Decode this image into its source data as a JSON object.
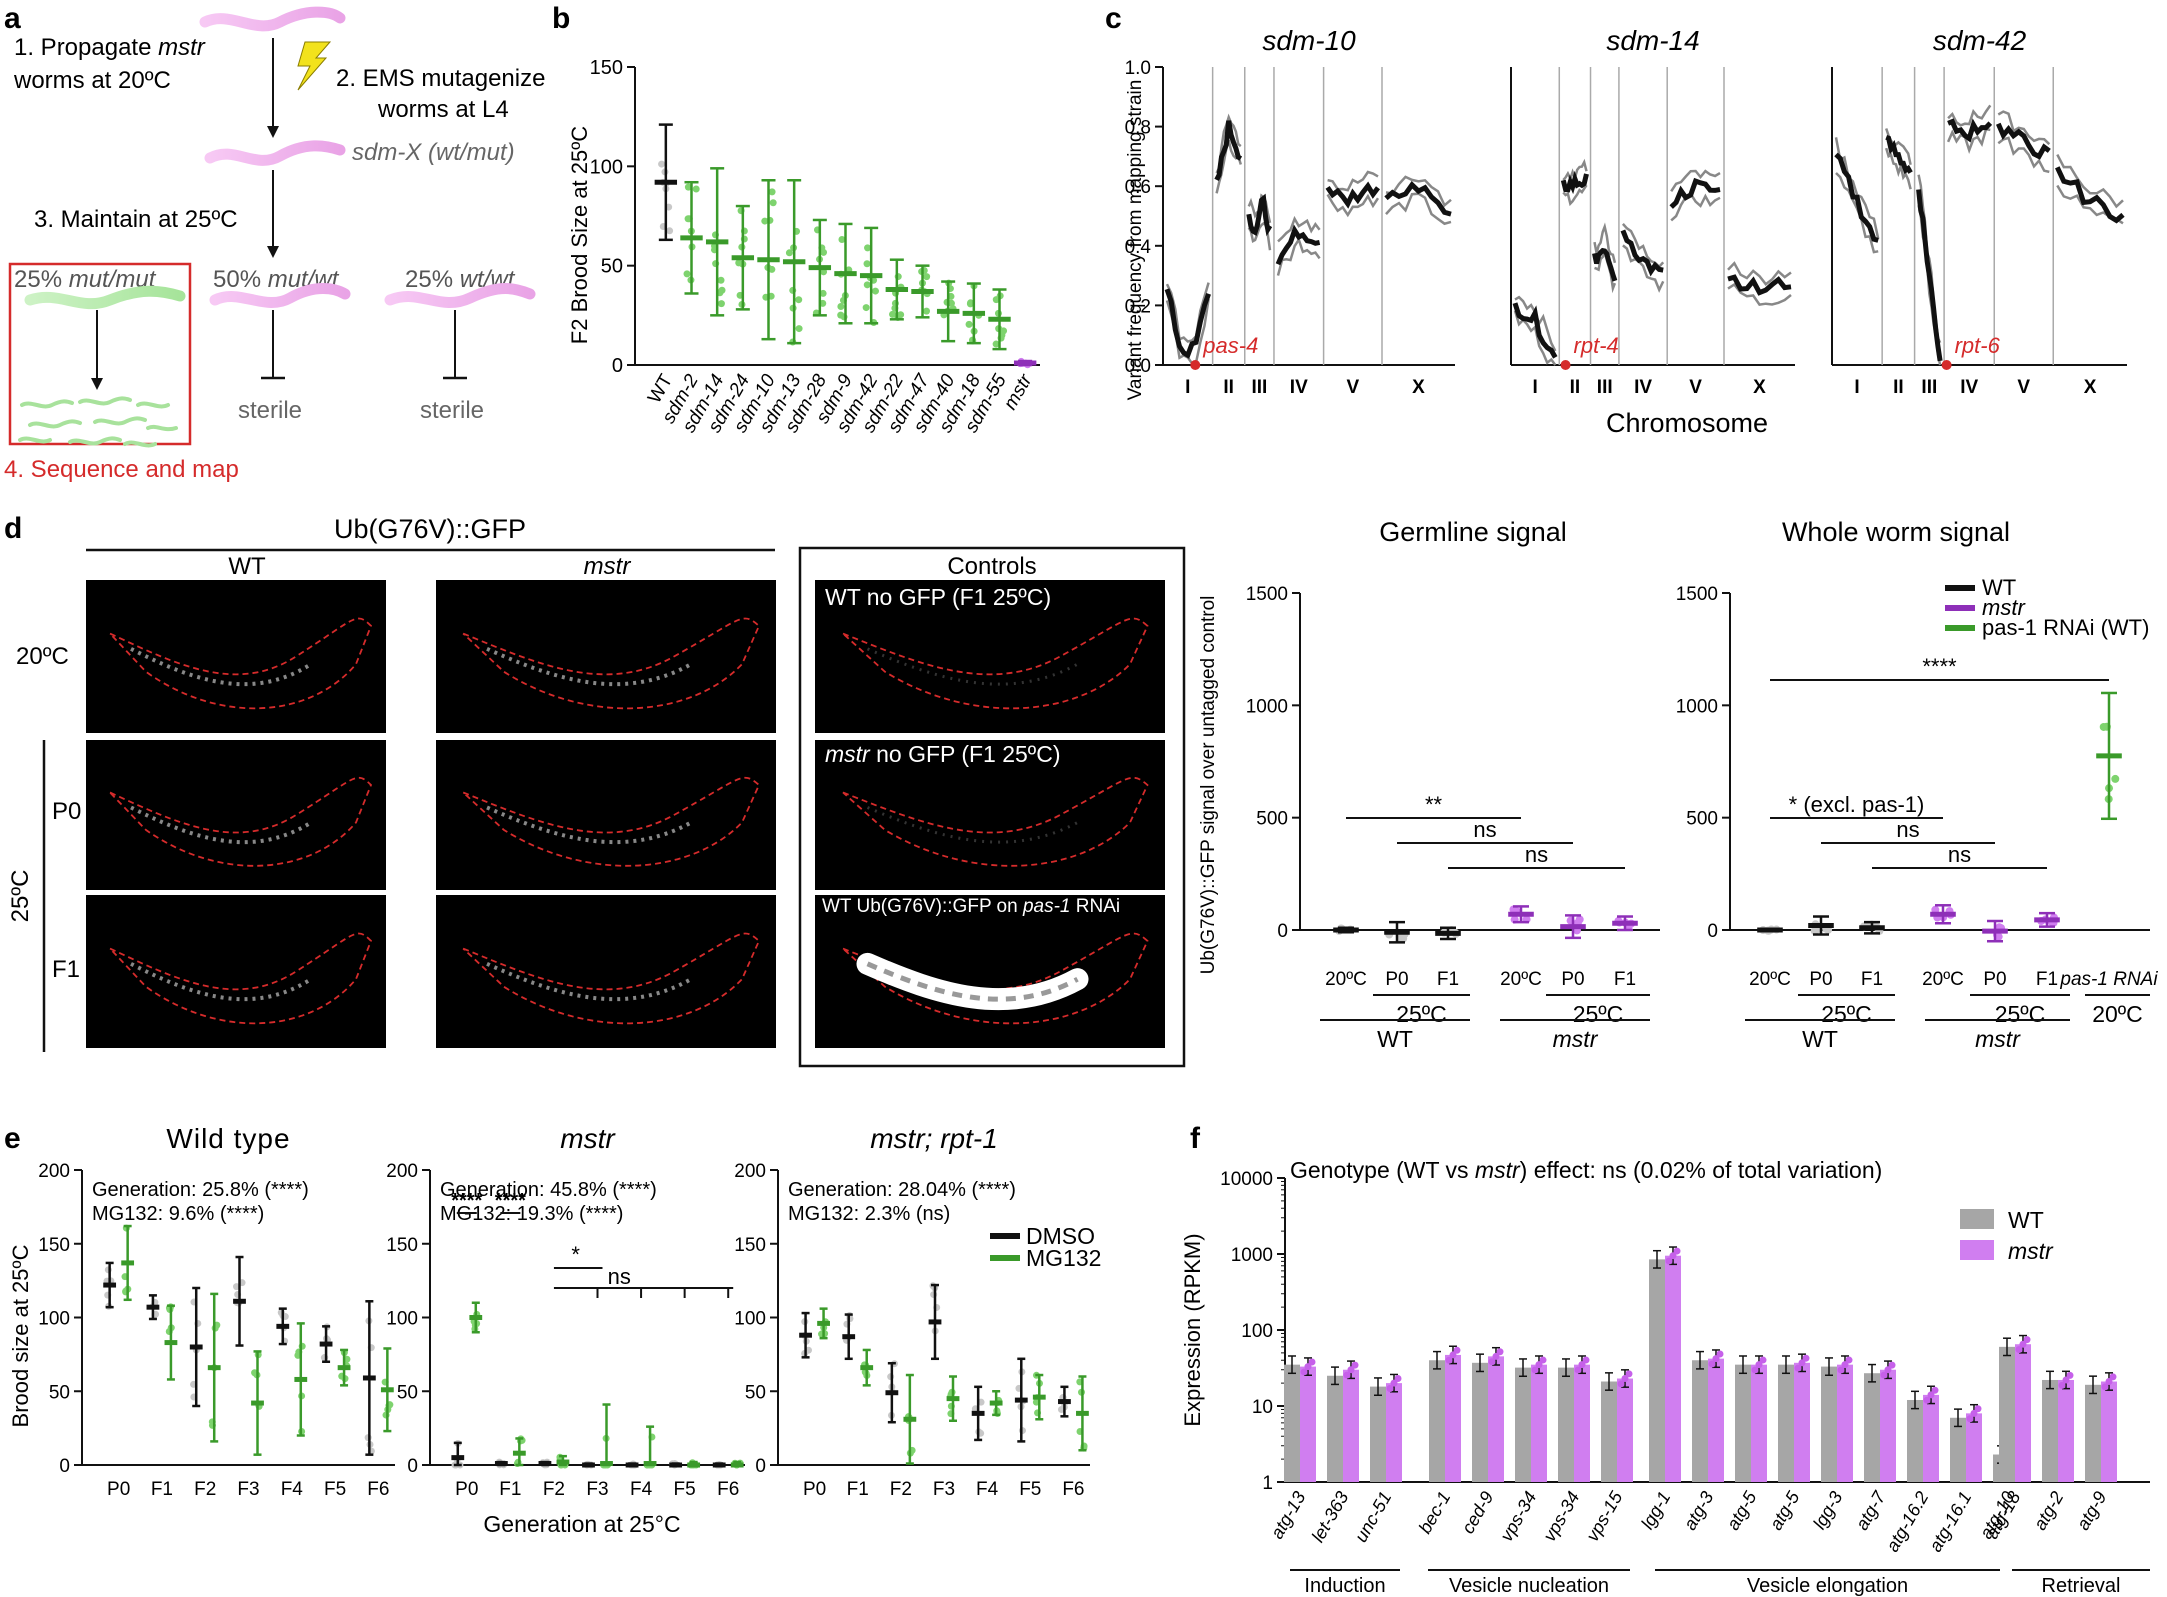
{
  "colors": {
    "black": "#111111",
    "green": "#3a9a2a",
    "light_green": "#7ed36e",
    "purple": "#8e2fb8",
    "light_purple": "#d07ef0",
    "grey": "#a9a9a9",
    "worm_pink": "#f2b6f0",
    "worm_green": "#b9ecb0",
    "red": "#d52b2b"
  },
  "panel_labels": {
    "a": "a",
    "b": "b",
    "c": "c",
    "d": "d",
    "e": "e",
    "f": "f"
  },
  "panel_a": {
    "step1_line1": "1. Propagate ",
    "step1_mstr": "mstr",
    "step1_line2": "worms at 20ºC",
    "step2_line1": "2. EMS mutagenize",
    "step2_line2": "worms at L4",
    "sdmx": "sdm-X (wt/mut)",
    "step3": "3. Maintain at 25ºC",
    "pct_mut": "25% ",
    "mut_mut": "mut/mut",
    "pct_het": "50% ",
    "mut_wt": "mut/wt",
    "pct_wt": "25% ",
    "wt_wt": "wt/wt",
    "sterile1": "sterile",
    "sterile2": "sterile",
    "step4": "4. Sequence and map",
    "icons": [
      "lightning-icon",
      "worm-icon"
    ]
  },
  "panel_b": {
    "ylabel": "F2 Brood Size at 25ºC"
  },
  "panel_c": {
    "ylabel": "Variant frequency  from mapping strain",
    "xlabel": "Chromosome",
    "titles": [
      "sdm-10",
      "sdm-14",
      "sdm-42"
    ],
    "genes": [
      "pas-4",
      "rpt-4",
      "rpt-6"
    ],
    "chromosomes": [
      "I",
      "II",
      "III",
      "IV",
      "V",
      "X"
    ],
    "yticks": [
      "0.0",
      "0.2",
      "0.4",
      "0.6",
      "0.8",
      "1.0"
    ]
  },
  "panel_d": {
    "title": "Ub(G76V)::GFP",
    "col_wt": "WT",
    "col_mstr": "mstr",
    "controls": "Controls",
    "row_20": "20ºC",
    "row_25": "25ºC",
    "row_p0": "P0",
    "row_f1": "F1",
    "ctrl1": "WT no GFP (F1 25ºC)",
    "ctrl2_it": "mstr",
    "ctrl2": " no GFP (F1 25ºC)",
    "ctrl3_a": "WT Ub(G76V)::GFP on ",
    "ctrl3_it": "pas-1",
    "ctrl3_b": " RNAi",
    "ylabel": "Ub(G76V)::GFP signal over untagged control",
    "germ_title": "Germline signal",
    "whole_title": "Whole worm signal",
    "legend": [
      "WT",
      "mstr",
      "pas-1 RNAi (WT)"
    ],
    "yticks": [
      "0",
      "500",
      "1000",
      "1500"
    ],
    "sig_germ": [
      "**",
      "ns",
      "ns"
    ],
    "sig_whole": [
      "****",
      "* (excl. pas-1)",
      "ns",
      "ns"
    ],
    "x_germ": [
      "20ºC",
      "P0",
      "F1",
      "20ºC",
      "P0",
      "F1"
    ],
    "x_whole": [
      "20ºC",
      "P0",
      "F1",
      "20ºC",
      "P0",
      "F1",
      "pas-1 RNAi"
    ],
    "grp_25": "25ºC",
    "grp_20": "20ºC",
    "grp_wt": "WT",
    "grp_mstr": "mstr"
  },
  "panel_e": {
    "titles": [
      "Wild type",
      "mstr",
      "mstr; rpt-1"
    ],
    "stats": [
      [
        "Generation: 25.8% (****)",
        "MG132: 9.6% (****)"
      ],
      [
        "Generation: 45.8% (****)",
        "MG132: 19.3% (****)"
      ],
      [
        "Generation: 28.04% (****)",
        "MG132: 2.3% (ns)"
      ]
    ],
    "ylabel": "Brood size at 25ºC",
    "xlabel": "Generation at 25°C",
    "legend": [
      "DMSO",
      "MG132"
    ],
    "sig": [
      "****",
      "****",
      "*",
      "ns"
    ]
  },
  "panel_f": {
    "title_a": "Genotype (WT vs ",
    "title_it": "mstr",
    "title_b": ") effect: ns (0.02% of total variation)",
    "ylabel": "Expression (RPKM)",
    "legend": [
      "WT",
      "mstr"
    ],
    "yticks": [
      "1",
      "10",
      "100",
      "1000",
      "10000"
    ],
    "groups": [
      "Induction",
      "Vesicle nucleation",
      "Vesicle elongation",
      "Retrieval"
    ]
  },
  "chart_data": [
    {
      "type": "scatter",
      "panel": "b",
      "ylabel": "F2 Brood Size at 25ºC",
      "ylim": [
        0,
        150
      ],
      "yticks": [
        0,
        50,
        100,
        150
      ],
      "categories": [
        "WT",
        "sdm-2",
        "sdm-14",
        "sdm-24",
        "sdm-10",
        "sdm-13",
        "sdm-28",
        "sdm-9",
        "sdm-42",
        "sdm-22",
        "sdm-47",
        "sdm-40",
        "sdm-18",
        "sdm-55",
        "mstr"
      ],
      "mean": [
        92,
        64,
        62,
        54,
        53,
        52,
        49,
        46,
        45,
        38,
        37,
        27,
        26,
        23,
        1
      ],
      "sd": [
        29,
        28,
        37,
        26,
        40,
        41,
        24,
        25,
        24,
        15,
        13,
        15,
        15,
        15,
        1
      ]
    },
    {
      "type": "line",
      "panel": "c",
      "series_names": [
        "sdm-10",
        "sdm-14",
        "sdm-42"
      ],
      "ylim": [
        0,
        1.0
      ],
      "chromosomes": [
        "I",
        "II",
        "III",
        "IV",
        "V",
        "X"
      ]
    },
    {
      "type": "bar",
      "panel": "d-germline",
      "ylim": [
        0,
        1500
      ],
      "categories": [
        "WT 20ºC",
        "WT P0 25ºC",
        "WT F1 25ºC",
        "mstr 20ºC",
        "mstr P0 25ºC",
        "mstr F1 25ºC"
      ],
      "values": [
        0,
        -10,
        -15,
        70,
        15,
        30
      ],
      "sd": [
        10,
        45,
        25,
        35,
        50,
        30
      ]
    },
    {
      "type": "bar",
      "panel": "d-whole",
      "ylim": [
        0,
        1500
      ],
      "categories": [
        "WT 20ºC",
        "WT P0 25ºC",
        "WT F1 25ºC",
        "mstr 20ºC",
        "mstr P0 25ºC",
        "mstr F1 25ºC",
        "pas-1 RNAi 20ºC WT"
      ],
      "values": [
        0,
        20,
        10,
        70,
        -5,
        45,
        775
      ],
      "sd": [
        5,
        40,
        25,
        40,
        45,
        30,
        280
      ]
    },
    {
      "type": "scatter",
      "panel": "e",
      "ylim": [
        0,
        200
      ],
      "yticks": [
        0,
        50,
        100,
        150,
        200
      ],
      "categories": [
        "P0",
        "F1",
        "F2",
        "F3",
        "F4",
        "F5",
        "F6"
      ],
      "series": [
        {
          "name": "DMSO",
          "group": "Wild type",
          "values": [
            122,
            107,
            80,
            111,
            94,
            82,
            59
          ],
          "sd": [
            15,
            8,
            40,
            30,
            12,
            12,
            52
          ]
        },
        {
          "name": "MG132",
          "group": "Wild type",
          "values": [
            137,
            83,
            66,
            42,
            58,
            66,
            51
          ],
          "sd": [
            25,
            25,
            50,
            35,
            38,
            12,
            28
          ]
        },
        {
          "name": "DMSO",
          "group": "mstr",
          "values": [
            5,
            1,
            1,
            0,
            0,
            0,
            0
          ],
          "sd": [
            10,
            1,
            1,
            1,
            1,
            1,
            1
          ]
        },
        {
          "name": "MG132",
          "group": "mstr",
          "values": [
            100,
            8,
            2,
            1,
            1,
            0,
            0
          ],
          "sd": [
            10,
            10,
            4,
            40,
            25,
            2,
            2
          ]
        },
        {
          "name": "DMSO",
          "group": "mstr; rpt-1",
          "values": [
            88,
            87,
            49,
            97,
            35,
            44,
            43
          ],
          "sd": [
            15,
            15,
            20,
            25,
            18,
            28,
            10
          ]
        },
        {
          "name": "MG132",
          "group": "mstr; rpt-1",
          "values": [
            96,
            66,
            31,
            45,
            42,
            46,
            35
          ],
          "sd": [
            10,
            12,
            30,
            15,
            8,
            15,
            25
          ]
        }
      ]
    },
    {
      "type": "bar",
      "panel": "f",
      "log_scale": true,
      "ylim": [
        1,
        10000
      ],
      "categories": [
        "atg-13",
        "let-363",
        "unc-51",
        "bec-1",
        "ced-9",
        "vps-34",
        "vps-34",
        "vps-15",
        "lgg-1",
        "atg-3",
        "atg-5",
        "atg-5",
        "lgg-3",
        "atg-7",
        "atg-16.2",
        "atg-16.1",
        "atg-10",
        "atg-18",
        "atg-2",
        "atg-9"
      ],
      "series": [
        {
          "name": "WT",
          "values": [
            35,
            25,
            18,
            40,
            37,
            32,
            32,
            21,
            850,
            40,
            35,
            35,
            33,
            27,
            12,
            7,
            2.3,
            60,
            22,
            19
          ]
        },
        {
          "name": "mstr",
          "values": [
            33,
            30,
            20,
            47,
            45,
            35,
            35,
            23,
            950,
            42,
            35,
            37,
            35,
            30,
            14,
            8,
            2.8,
            65,
            22,
            21
          ]
        }
      ]
    }
  ]
}
